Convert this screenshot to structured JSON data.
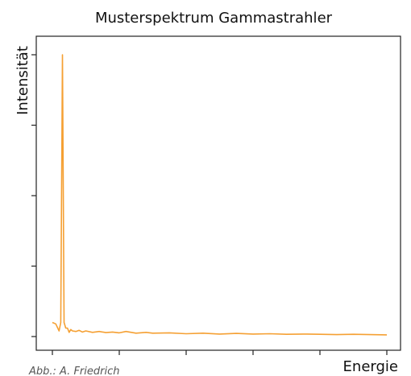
{
  "chart_data": {
    "type": "line",
    "title": "Musterspektrum Gammastrahler",
    "xlabel": "Energie",
    "ylabel": "Intensität",
    "x_range": [
      0,
      1
    ],
    "y_range": [
      0,
      1
    ],
    "series": [
      {
        "color": "#f5a033",
        "x": [
          0.0,
          0.01,
          0.02,
          0.025,
          0.03,
          0.035,
          0.04,
          0.045,
          0.05,
          0.055,
          0.06,
          0.07,
          0.08,
          0.09,
          0.1,
          0.12,
          0.14,
          0.16,
          0.18,
          0.2,
          0.22,
          0.25,
          0.28,
          0.3,
          0.35,
          0.4,
          0.45,
          0.5,
          0.55,
          0.6,
          0.65,
          0.7,
          0.75,
          0.8,
          0.85,
          0.9,
          0.95,
          1.0
        ],
        "y": [
          0.05,
          0.045,
          0.02,
          0.05,
          1.0,
          0.05,
          0.03,
          0.03,
          0.015,
          0.025,
          0.02,
          0.018,
          0.022,
          0.016,
          0.02,
          0.015,
          0.018,
          0.014,
          0.016,
          0.013,
          0.018,
          0.012,
          0.015,
          0.012,
          0.013,
          0.01,
          0.012,
          0.009,
          0.011,
          0.009,
          0.01,
          0.008,
          0.009,
          0.008,
          0.007,
          0.008,
          0.007,
          0.006
        ]
      }
    ],
    "credit": "Abb.: A. Friedrich"
  }
}
